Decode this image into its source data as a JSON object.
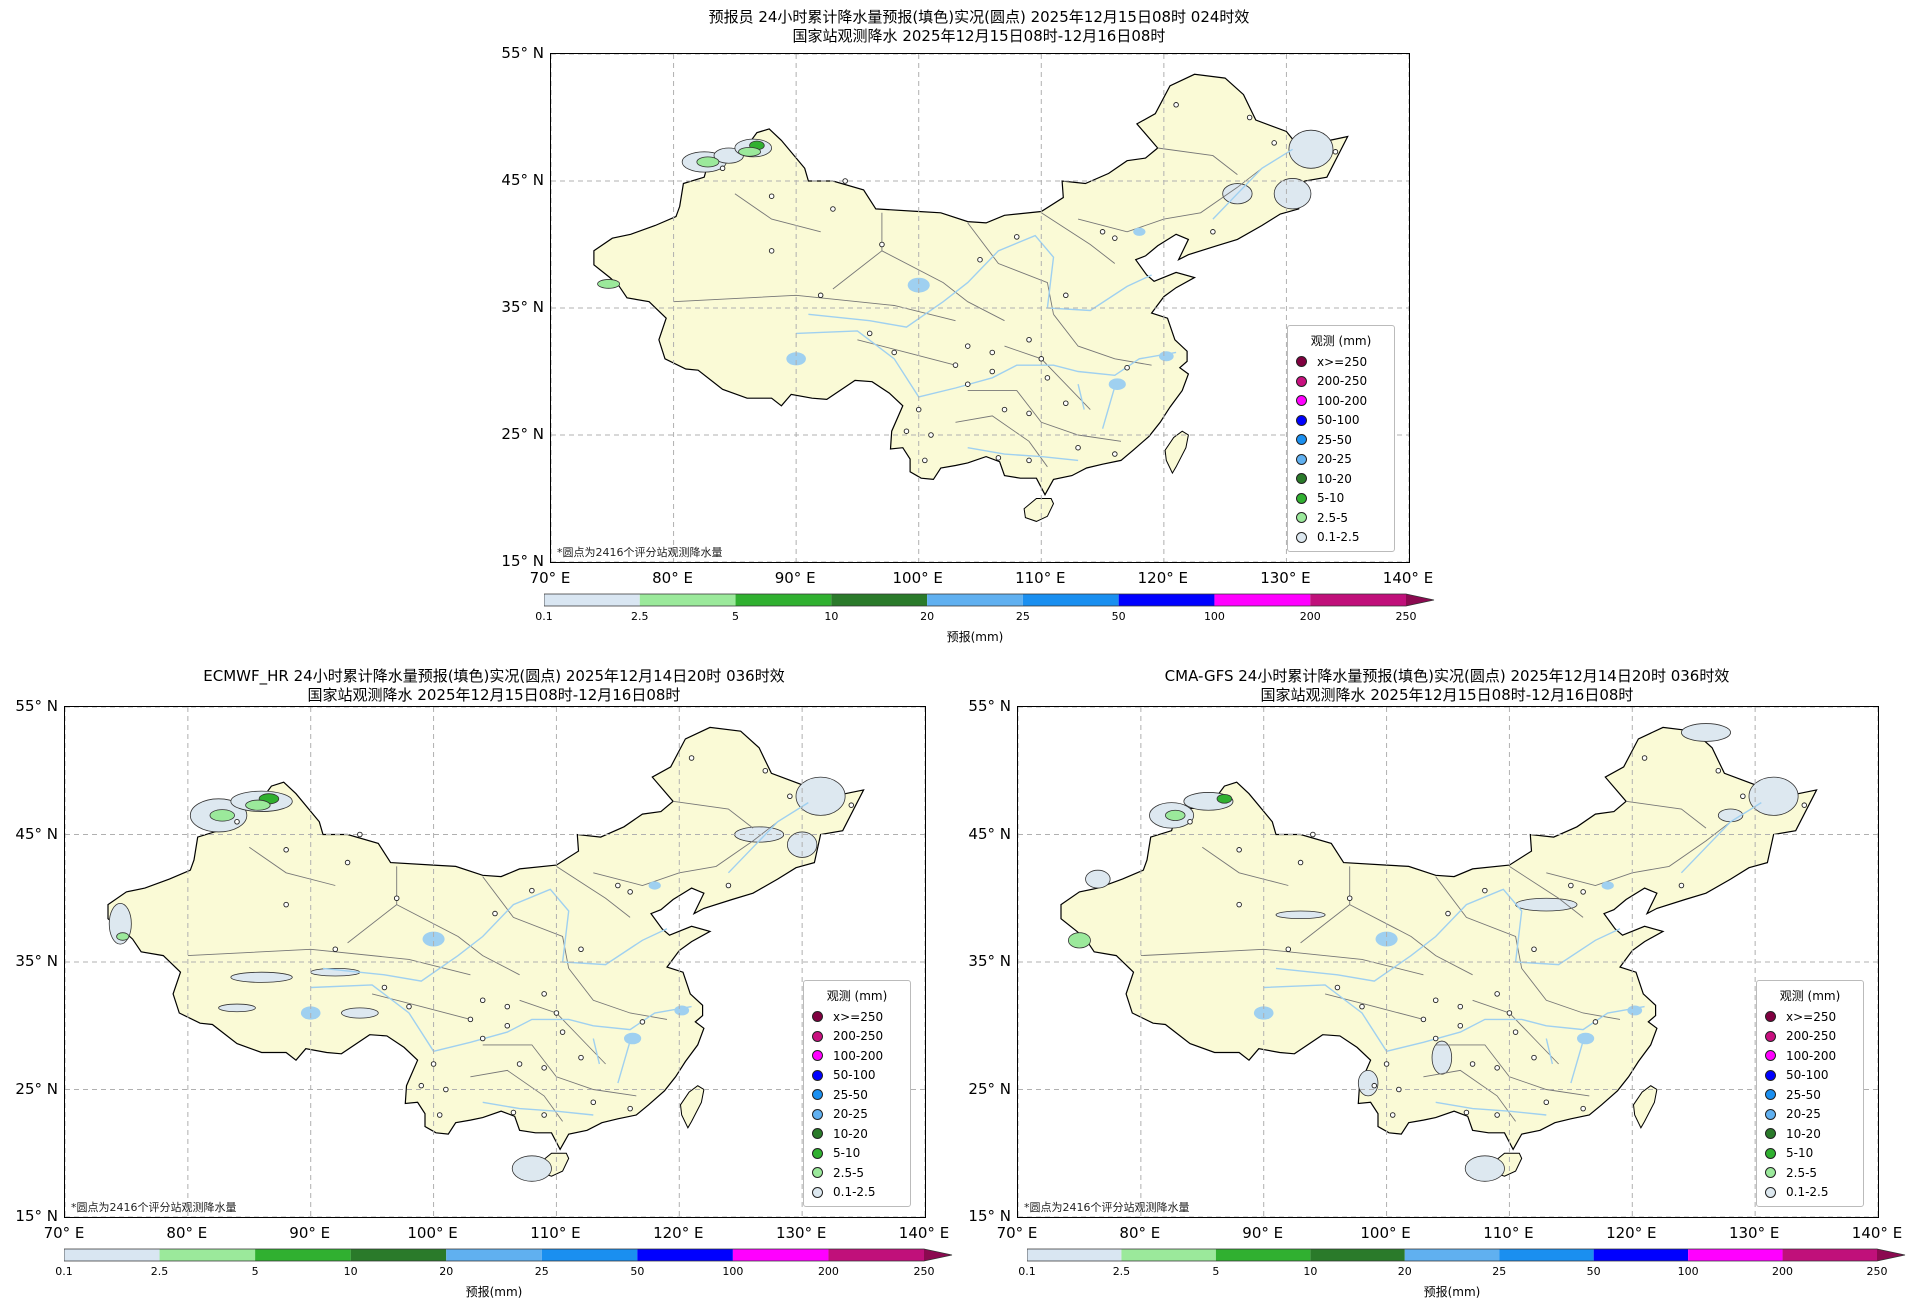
{
  "legend": {
    "title": "观测 (mm)",
    "items": [
      {
        "label": "x>=250",
        "color": "#800040"
      },
      {
        "label": "200-250",
        "color": "#c8107f"
      },
      {
        "label": "100-200",
        "color": "#ff00ff"
      },
      {
        "label": "50-100",
        "color": "#0000ff"
      },
      {
        "label": "25-50",
        "color": "#1a8ff0"
      },
      {
        "label": "20-25",
        "color": "#60b0f0"
      },
      {
        "label": "10-20",
        "color": "#2a7a2a"
      },
      {
        "label": "5-10",
        "color": "#30b030"
      },
      {
        "label": "2.5-5",
        "color": "#9be99b"
      },
      {
        "label": "0.1-2.5",
        "color": "#dde8f0"
      }
    ]
  },
  "colorbar": {
    "label": "预报(mm)",
    "ticks": [
      "0.1",
      "2.5",
      "5",
      "10",
      "20",
      "25",
      "50",
      "100",
      "200",
      "250"
    ],
    "colors": [
      "#d9e6f2",
      "#9be99b",
      "#30b030",
      "#2a7a2a",
      "#60b0f0",
      "#1a8ff0",
      "#0000ff",
      "#ff00ff",
      "#c0107a"
    ],
    "extend_color": "#8b0a50"
  },
  "axes": {
    "lat_labels": [
      "55° N",
      "45° N",
      "35° N",
      "25° N",
      "15° N"
    ],
    "lon_labels": [
      "70° E",
      "80° E",
      "90° E",
      "100° E",
      "110° E",
      "120° E",
      "130° E",
      "140° E"
    ],
    "lon_range": [
      70,
      140
    ],
    "lat_range": [
      15,
      55
    ]
  },
  "colors": {
    "land": "#fafad6",
    "land_border": "#000000",
    "province_border": "#777777",
    "river": "#9fd0f0",
    "light_precip": "#dde8f0",
    "grid": "#b0b0b0"
  },
  "footnote": "*圆点为2416个评分站观测降水量",
  "panels": [
    {
      "id": "forecaster",
      "title1": "预报员 24小时累计降水量预报(填色)实况(圆点) 2025年12月15日08时 024时效",
      "title2": "国家站观测降水 2025年12月15日08时-12月16日08时"
    },
    {
      "id": "ecmwf",
      "title1": "ECMWF_HR 24小时累计降水量预报(填色)实况(圆点) 2025年12月14日20时 036时效",
      "title2": "国家站观测降水 2025年12月15日08时-12月16日08时"
    },
    {
      "id": "cma",
      "title1": "CMA-GFS 24小时累计降水量预报(填色)实况(圆点) 2025年12月14日20时 036时效",
      "title2": "国家站观测降水 2025年12月15日08时-12月16日08时"
    }
  ]
}
